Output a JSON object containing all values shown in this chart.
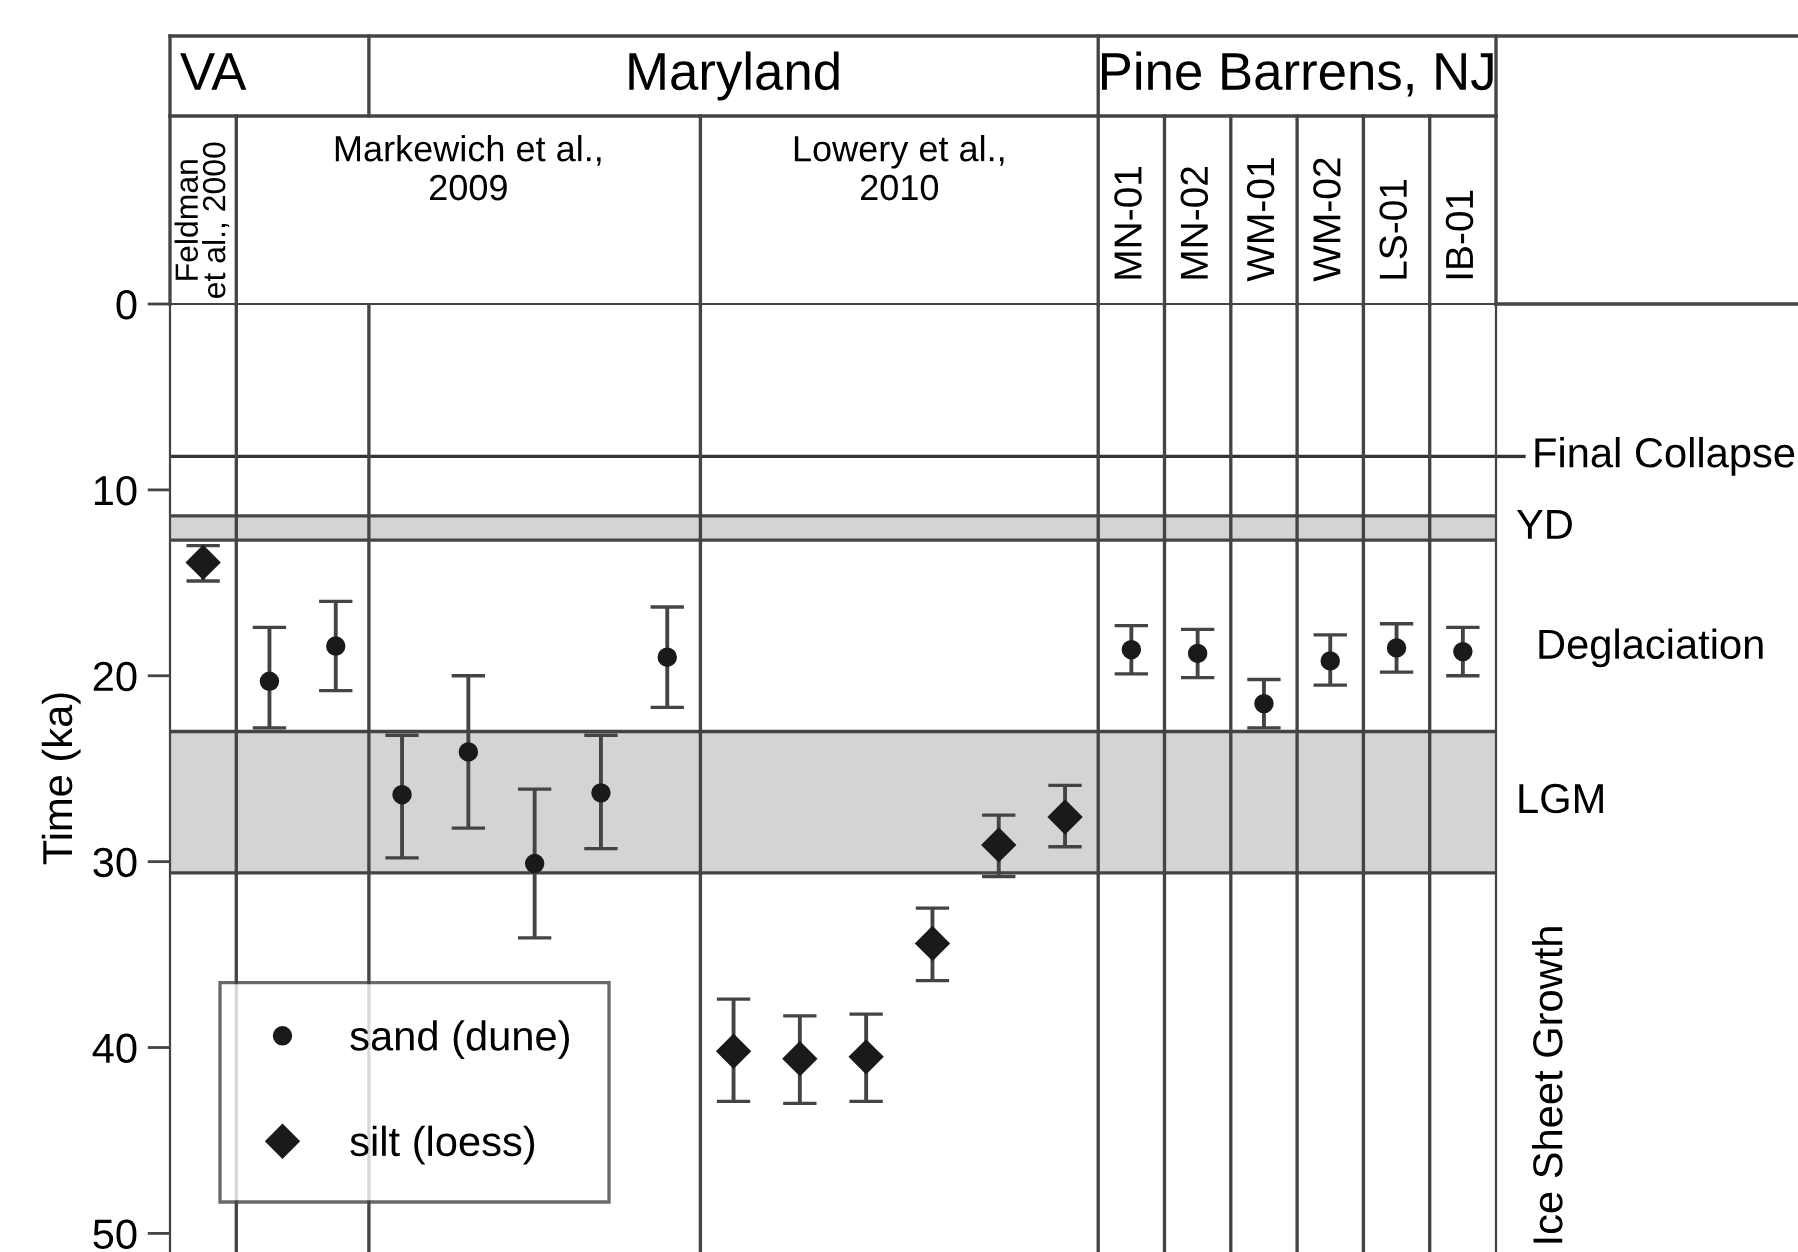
{
  "chart_data": {
    "type": "scatter",
    "ylabel": "Time (ka)",
    "categories": [
      null,
      null,
      null,
      null,
      null,
      null,
      null,
      null,
      null,
      null,
      null,
      null,
      null,
      null,
      "MN-01",
      "MN-02",
      "WM-01",
      "WM-02",
      "LS-01",
      "IB-01"
    ],
    "series": [
      {
        "name": "sand (dune)",
        "color": "#1a1a1a",
        "marker": "circle",
        "values": [
          null,
          20.3,
          18.4,
          26.4,
          24.1,
          30.1,
          26.3,
          19.0,
          null,
          null,
          null,
          null,
          null,
          null,
          18.6,
          18.8,
          21.5,
          19.2,
          18.5,
          18.7
        ],
        "errors": [
          null,
          [
            17.4,
            22.8
          ],
          [
            16.0,
            20.8
          ],
          [
            23.2,
            29.8
          ],
          [
            20.0,
            28.2
          ],
          [
            26.1,
            34.1
          ],
          [
            23.2,
            29.3
          ],
          [
            16.3,
            21.7
          ],
          null,
          null,
          null,
          null,
          null,
          null,
          [
            17.3,
            19.9
          ],
          [
            17.5,
            20.1
          ],
          [
            20.2,
            22.8
          ],
          [
            17.8,
            20.5
          ],
          [
            17.2,
            19.8
          ],
          [
            17.4,
            20.0
          ]
        ]
      },
      {
        "name": "silt (loess)",
        "color": "#1a1a1a",
        "marker": "diamond",
        "values": [
          13.9,
          null,
          null,
          null,
          null,
          null,
          null,
          null,
          40.2,
          40.6,
          40.5,
          34.4,
          29.1,
          27.6,
          null,
          null,
          null,
          null,
          null,
          null
        ],
        "errors": [
          [
            13.0,
            14.9
          ],
          null,
          null,
          null,
          null,
          null,
          null,
          null,
          [
            37.4,
            42.9
          ],
          [
            38.3,
            43.0
          ],
          [
            38.2,
            42.9
          ],
          [
            32.5,
            36.4
          ],
          [
            27.5,
            30.8
          ],
          [
            25.9,
            29.2
          ],
          null,
          null,
          null,
          null,
          null,
          null
        ]
      }
    ],
    "ylim": [
      51,
      0
    ],
    "yticks": [
      0,
      10,
      20,
      30,
      40,
      50
    ],
    "ref_lines": [
      {
        "axis": "y",
        "value": 8.2,
        "label": "Final Collapse",
        "color": "#333333"
      }
    ],
    "bands": [
      {
        "axis": "y",
        "from": 11.4,
        "to": 12.7,
        "label": "YD",
        "color": "#d4d4d6"
      },
      {
        "axis": "y",
        "from": 23.0,
        "to": 30.6,
        "label": "LGM",
        "color": "#d4d4d6"
      }
    ],
    "annotations": [
      "VA",
      "Maryland",
      "Pine Barrens, NJ",
      "Feldman\net al., 2000",
      "Markewich et al.,\n2009",
      "Lowery et al.,\n2010",
      "Deglaciation",
      "Ice Sheet Growth"
    ],
    "legend": "bottom left",
    "grid": false
  }
}
